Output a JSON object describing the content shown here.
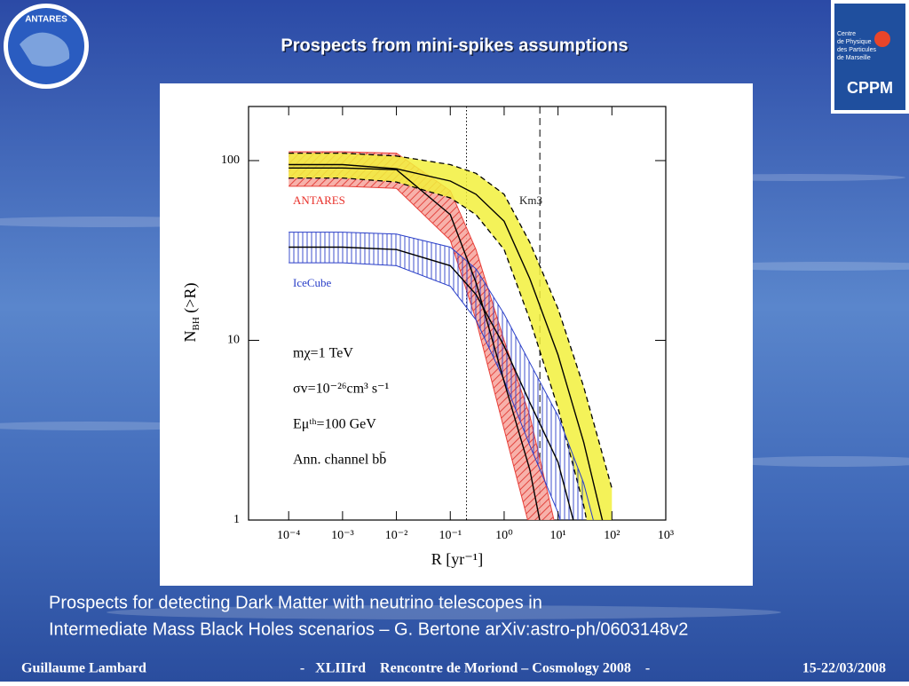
{
  "slide": {
    "title": "Prospects from mini-spikes assumptions",
    "caption": [
      "Prospects for detecting Dark Matter with neutrino telescopes in",
      "Intermediate Mass Black Holes scenarios – G. Bertone arXiv:astro-ph/0603148v2"
    ],
    "footer": {
      "author": "Guillaume Lambard",
      "event": "-   XLIIIrd    Rencontre de Moriond – Cosmology 2008    -",
      "date": "15-22/03/2008"
    },
    "logo_left": "ANTARES",
    "logo_right": {
      "lines": [
        "Centre",
        "de Physique",
        "des Particules",
        "de Marseille"
      ],
      "acronym": "CPPM"
    }
  },
  "chart_data": {
    "type": "line",
    "log_x": true,
    "log_y": true,
    "x_label": "R [yr⁻¹]",
    "y_label": {
      "main": "N",
      "sub": "BH",
      "rest": " (>R)"
    },
    "xlim": [
      1.8e-05,
      1000
    ],
    "ylim": [
      1,
      200
    ],
    "xticks": [
      {
        "value": 0.0001,
        "label": "10⁻⁴"
      },
      {
        "value": 0.001,
        "label": "10⁻³"
      },
      {
        "value": 0.01,
        "label": "10⁻²"
      },
      {
        "value": 0.1,
        "label": "10⁻¹"
      },
      {
        "value": 1,
        "label": "10⁰"
      },
      {
        "value": 10,
        "label": "10¹"
      },
      {
        "value": 100,
        "label": "10²"
      },
      {
        "value": 1000,
        "label": "10³"
      }
    ],
    "yticks": [
      1,
      10,
      100
    ],
    "x": [
      0.0001,
      0.001,
      0.01,
      0.1,
      0.3,
      1,
      3,
      10,
      30,
      100
    ],
    "series": [
      {
        "name": "ANTARES",
        "color": "#e8403a",
        "label_color": "#e8302a",
        "hatch": "diagonal",
        "values": [
          91,
          91,
          89,
          50,
          21,
          5.9,
          1.9,
          0.3,
          null,
          null
        ],
        "upper": [
          112,
          112,
          110,
          68,
          32,
          10,
          3.8,
          0.8,
          null,
          null
        ],
        "lower": [
          72,
          72,
          70,
          36,
          13,
          3.2,
          0.9,
          0.1,
          null,
          null
        ]
      },
      {
        "name": "Km3",
        "color": "#f2f03c",
        "label_color": "#222222",
        "hatch": "solid",
        "values": [
          95,
          95,
          90,
          77,
          65,
          46,
          22,
          8.3,
          2.7,
          0.6
        ],
        "upper": [
          110,
          110,
          106,
          95,
          85,
          65,
          35,
          15,
          5.5,
          1.5
        ],
        "lower": [
          80,
          80,
          76,
          62,
          50,
          32,
          13,
          4.2,
          1.2,
          0.2
        ]
      },
      {
        "name": "IceCube",
        "color": "#2a3fc8",
        "label_color": "#2a3fc8",
        "hatch": "vertical",
        "values": [
          33,
          33,
          32,
          26,
          18,
          9.3,
          4.5,
          2.1,
          0.6,
          null
        ],
        "upper": [
          40,
          40,
          39,
          33,
          25,
          14,
          7.5,
          3.8,
          1.6,
          0.4
        ],
        "lower": [
          27,
          27,
          26,
          20,
          13,
          6,
          2.6,
          1.1,
          0.35,
          null
        ]
      }
    ],
    "vlines": [
      {
        "value": 0.2,
        "style": "dotted"
      },
      {
        "value": 4.6,
        "style": "dashed"
      }
    ],
    "annotations": [
      "mχ=1 TeV",
      "σv=10⁻²⁶cm³ s⁻¹",
      "Eμᵗʰ=100 GeV",
      "Ann. channel bb̄"
    ]
  }
}
